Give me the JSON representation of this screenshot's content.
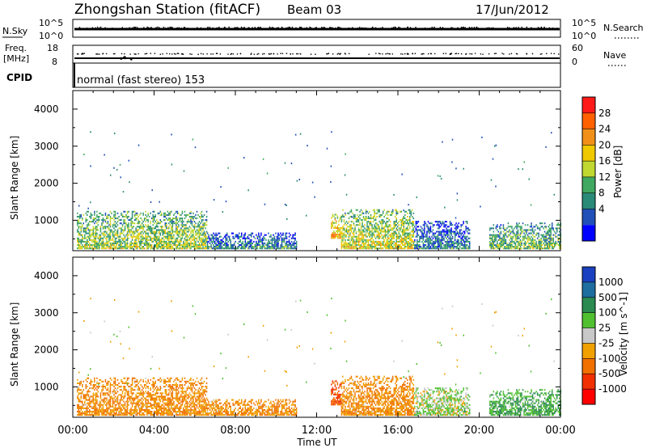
{
  "header": {
    "station": "Zhongshan Station (fitACF)",
    "beam": "Beam 03",
    "date": "17/Jun/2012"
  },
  "noise_panel": {
    "left_label": "N.Sky",
    "right_label": "N.Search",
    "left_ticks": [
      "10^5",
      "10^0"
    ],
    "right_ticks": [
      "10^5",
      "10^0"
    ]
  },
  "freq_panel": {
    "left_label_1": "Freq.",
    "left_label_2": "[MHz]",
    "right_label": "Nave",
    "left_ticks": [
      "18",
      "8"
    ],
    "right_ticks": [
      "60",
      "0"
    ]
  },
  "cpid": {
    "label": "CPID",
    "mode": "normal (fast stereo) 153"
  },
  "power_panel": {
    "ylabel": "Slant Range [km]",
    "yticks": [
      "4000",
      "3000",
      "2000",
      "1000"
    ],
    "cbar_label": "Power [dB]",
    "cbar_ticks": [
      "28",
      "24",
      "20",
      "16",
      "12",
      "8",
      "4"
    ],
    "cbar_colors": [
      "#ff1a1a",
      "#ff6000",
      "#f09018",
      "#f0c800",
      "#c0d830",
      "#40a860",
      "#2a8a78",
      "#2050b8",
      "#0000ff"
    ]
  },
  "velocity_panel": {
    "ylabel": "Slant Range [km]",
    "yticks": [
      "4000",
      "3000",
      "2000",
      "1000"
    ],
    "cbar_label": "Velocity [m s^-1]",
    "cbar_ticks": [
      "1000",
      "500",
      "100",
      "25",
      "-25",
      "-100",
      "-500",
      "-1000"
    ],
    "cbar_colors": [
      "#1a3fbf",
      "#1f6ea0",
      "#2a8a50",
      "#50c030",
      "#c8c8c8",
      "#f0a000",
      "#f07000",
      "#f03000",
      "#ff0000"
    ]
  },
  "x_axis": {
    "label": "Time UT",
    "ticks": [
      "00:00",
      "04:00",
      "08:00",
      "12:00",
      "16:00",
      "20:00",
      "00:00"
    ]
  },
  "chart_data": {
    "type": "heatmap",
    "x_range_hours": [
      0,
      24
    ],
    "y_range_km": [
      180,
      4500
    ],
    "note_series": [
      "Power [dB]",
      "Velocity [m s^-1]"
    ],
    "echo_regions": [
      {
        "t0": 0.2,
        "t1": 6.6,
        "r0": 220,
        "r1": 1250,
        "power_mean": 16,
        "velocity_mean": -100
      },
      {
        "t0": 6.6,
        "t1": 11.0,
        "r0": 220,
        "r1": 650,
        "power_mean": 10,
        "velocity_mean": -100
      },
      {
        "t0": 12.7,
        "t1": 13.2,
        "r0": 500,
        "r1": 1150,
        "power_mean": 22,
        "velocity_mean": -500
      },
      {
        "t0": 13.2,
        "t1": 16.8,
        "r0": 220,
        "r1": 1300,
        "power_mean": 18,
        "velocity_mean": -100
      },
      {
        "t0": 16.8,
        "t1": 19.5,
        "r0": 220,
        "r1": 950,
        "power_mean": 9,
        "velocity_mean": 25
      },
      {
        "t0": 20.5,
        "t1": 24.0,
        "r0": 220,
        "r1": 900,
        "power_mean": 14,
        "velocity_mean": 100
      }
    ]
  }
}
